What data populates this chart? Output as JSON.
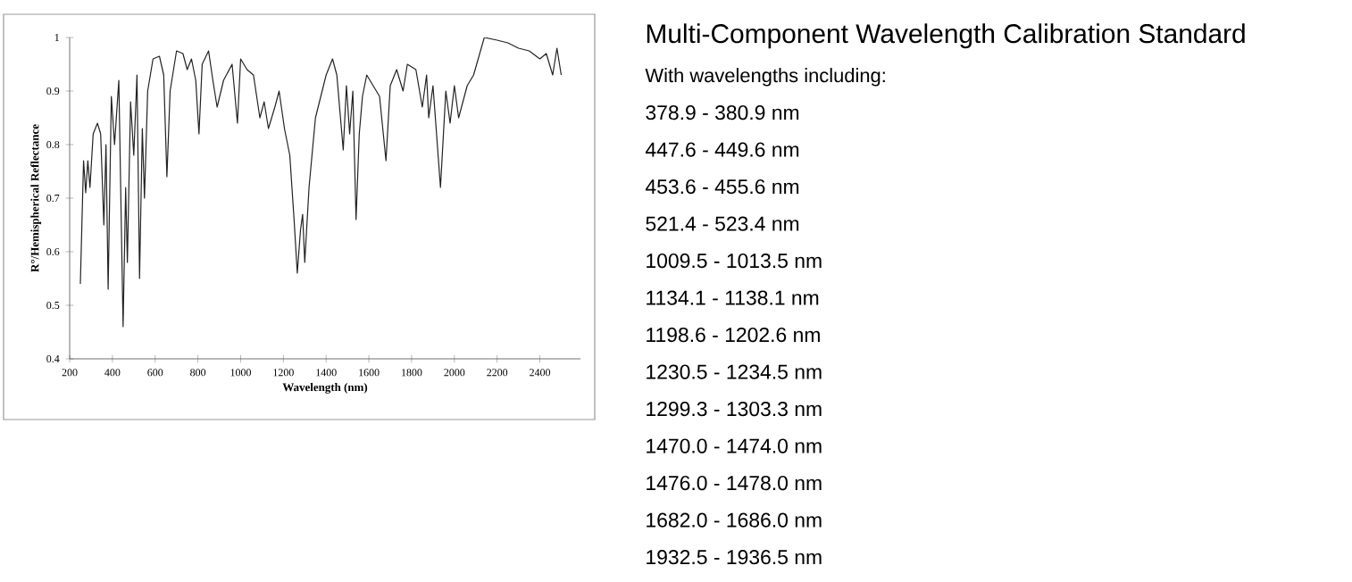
{
  "chart_data": [
    {
      "type": "line",
      "xlabel": "Wavelength (nm)",
      "ylabel": "R°/Hemispherical Reflectance",
      "xlim": [
        200,
        2590
      ],
      "ylim": [
        0.4,
        1
      ],
      "xticks": [
        200,
        400,
        600,
        800,
        1000,
        1200,
        1400,
        1600,
        1800,
        2000,
        2200,
        2400
      ],
      "yticks": [
        0.4,
        0.5,
        0.6,
        0.7,
        0.8,
        0.9,
        1
      ],
      "series": [
        {
          "color": "#222222",
          "x": [
            250,
            265,
            275,
            285,
            295,
            310,
            330,
            345,
            360,
            370,
            380,
            395,
            410,
            430,
            450,
            462,
            470,
            485,
            500,
            515,
            527,
            540,
            550,
            565,
            590,
            620,
            640,
            655,
            670,
            700,
            730,
            750,
            770,
            790,
            805,
            820,
            850,
            870,
            890,
            920,
            960,
            985,
            1000,
            1030,
            1060,
            1090,
            1110,
            1130,
            1160,
            1180,
            1205,
            1230,
            1250,
            1265,
            1280,
            1290,
            1300,
            1320,
            1350,
            1400,
            1430,
            1450,
            1465,
            1480,
            1495,
            1510,
            1525,
            1540,
            1555,
            1570,
            1590,
            1620,
            1650,
            1680,
            1700,
            1730,
            1760,
            1780,
            1820,
            1850,
            1870,
            1880,
            1900,
            1935,
            1960,
            1980,
            2000,
            2020,
            2060,
            2090,
            2140,
            2200,
            2250,
            2300,
            2350,
            2400,
            2430,
            2460,
            2480,
            2500
          ],
          "values": [
            0.54,
            0.77,
            0.71,
            0.77,
            0.72,
            0.82,
            0.84,
            0.82,
            0.65,
            0.8,
            0.53,
            0.89,
            0.8,
            0.92,
            0.46,
            0.72,
            0.58,
            0.88,
            0.78,
            0.93,
            0.55,
            0.83,
            0.7,
            0.9,
            0.96,
            0.965,
            0.93,
            0.74,
            0.9,
            0.975,
            0.97,
            0.94,
            0.96,
            0.92,
            0.82,
            0.95,
            0.975,
            0.92,
            0.87,
            0.92,
            0.95,
            0.84,
            0.96,
            0.94,
            0.93,
            0.85,
            0.88,
            0.83,
            0.87,
            0.9,
            0.83,
            0.78,
            0.66,
            0.56,
            0.64,
            0.67,
            0.58,
            0.72,
            0.85,
            0.93,
            0.96,
            0.93,
            0.86,
            0.79,
            0.91,
            0.82,
            0.9,
            0.66,
            0.82,
            0.89,
            0.93,
            0.91,
            0.89,
            0.77,
            0.91,
            0.94,
            0.9,
            0.95,
            0.94,
            0.87,
            0.93,
            0.85,
            0.91,
            0.72,
            0.9,
            0.84,
            0.91,
            0.85,
            0.91,
            0.93,
            1.0,
            0.995,
            0.99,
            0.98,
            0.975,
            0.96,
            0.97,
            0.93,
            0.98,
            0.93
          ]
        }
      ]
    },
    {
      "type": "other",
      "title": "Multi-Component Wavelength Calibration Standard",
      "subtitle": "With wavelengths including:",
      "annotations": [
        "378.9 - 380.9 nm",
        "447.6 - 449.6 nm",
        "453.6 - 455.6 nm",
        "521.4 - 523.4 nm",
        "1009.5 - 1013.5 nm",
        "1134.1 - 1138.1 nm",
        "1198.6 - 1202.6 nm",
        "1230.5 - 1234.5 nm",
        "1299.3 - 1303.3 nm",
        "1470.0 - 1474.0 nm",
        "1476.0 - 1478.0 nm",
        "1682.0 - 1686.0 nm",
        "1932.5 - 1936.5 nm"
      ]
    }
  ]
}
